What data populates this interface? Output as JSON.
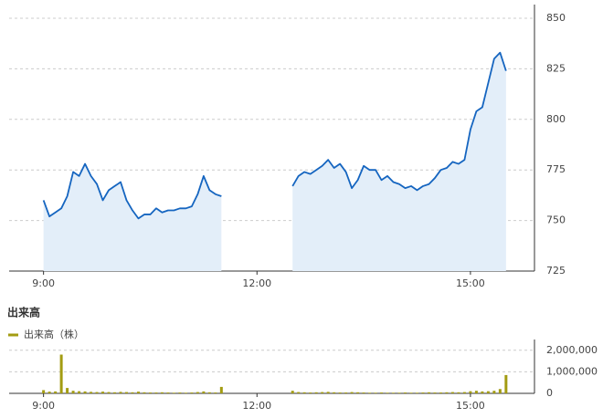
{
  "chart_data": [
    {
      "type": "line",
      "color": "#1565c0",
      "fill": "#e3eef9",
      "grid": true,
      "x": [
        540,
        545,
        550,
        555,
        560,
        565,
        570,
        575,
        580,
        585,
        590,
        595,
        600,
        605,
        610,
        615,
        620,
        625,
        630,
        635,
        640,
        645,
        650,
        655,
        660,
        665,
        670,
        675,
        680,
        685,
        690,
        720,
        750,
        755,
        760,
        765,
        770,
        775,
        780,
        785,
        790,
        795,
        800,
        805,
        810,
        815,
        820,
        825,
        830,
        835,
        840,
        845,
        850,
        855,
        860,
        865,
        870,
        875,
        880,
        885,
        890,
        895,
        900,
        905,
        910,
        915,
        920,
        925,
        930
      ],
      "values": [
        760,
        752,
        754,
        756,
        762,
        774,
        772,
        778,
        772,
        768,
        760,
        765,
        767,
        769,
        760,
        755,
        751,
        753,
        753,
        756,
        754,
        755,
        755,
        756,
        756,
        757,
        763,
        772,
        765,
        763,
        762,
        null,
        767,
        772,
        774,
        773,
        775,
        777,
        780,
        776,
        778,
        774,
        766,
        770,
        777,
        775,
        775,
        770,
        772,
        769,
        768,
        766,
        767,
        765,
        767,
        768,
        771,
        775,
        776,
        779,
        778,
        780,
        795,
        804,
        806,
        818,
        830,
        833,
        824
      ],
      "xlim": [
        511,
        954
      ],
      "ylim": [
        725,
        850
      ],
      "xticks": [
        {
          "value": 540,
          "label": "9:00"
        },
        {
          "value": 720,
          "label": "12:00"
        },
        {
          "value": 900,
          "label": "15:00"
        }
      ],
      "yticks": [
        725,
        750,
        775,
        800,
        825,
        850
      ]
    },
    {
      "type": "bar",
      "title": "出来高",
      "grid": true,
      "x": [
        540,
        545,
        550,
        555,
        560,
        565,
        570,
        575,
        580,
        585,
        590,
        595,
        600,
        605,
        610,
        615,
        620,
        625,
        630,
        635,
        640,
        645,
        650,
        655,
        660,
        665,
        670,
        675,
        680,
        685,
        690,
        750,
        755,
        760,
        765,
        770,
        775,
        780,
        785,
        790,
        795,
        800,
        805,
        810,
        815,
        820,
        825,
        830,
        835,
        840,
        845,
        850,
        855,
        860,
        865,
        870,
        875,
        880,
        885,
        890,
        895,
        900,
        905,
        910,
        915,
        920,
        925,
        930
      ],
      "series": [
        {
          "name": "出来高（株）",
          "color": "#a39c12",
          "values": [
            150000,
            80000,
            90000,
            1800000,
            250000,
            120000,
            100000,
            90000,
            70000,
            60000,
            80000,
            60000,
            50000,
            70000,
            60000,
            50000,
            80000,
            50000,
            40000,
            40000,
            50000,
            40000,
            30000,
            40000,
            30000,
            40000,
            60000,
            90000,
            50000,
            40000,
            300000,
            120000,
            60000,
            50000,
            40000,
            50000,
            60000,
            70000,
            50000,
            40000,
            40000,
            60000,
            50000,
            40000,
            30000,
            30000,
            40000,
            30000,
            30000,
            30000,
            40000,
            30000,
            30000,
            40000,
            50000,
            40000,
            40000,
            50000,
            60000,
            50000,
            60000,
            100000,
            120000,
            90000,
            100000,
            120000,
            200000,
            850000
          ]
        }
      ],
      "xlim": [
        511,
        954
      ],
      "ylim": [
        0,
        2500000
      ],
      "xticks": [
        {
          "value": 540,
          "label": "9:00"
        },
        {
          "value": 720,
          "label": "12:00"
        },
        {
          "value": 900,
          "label": "15:00"
        }
      ],
      "yticks": [
        0,
        {
          "value": 1000000,
          "label": "1,000,000"
        },
        {
          "value": 2000000,
          "label": "2,000,000"
        }
      ]
    }
  ]
}
